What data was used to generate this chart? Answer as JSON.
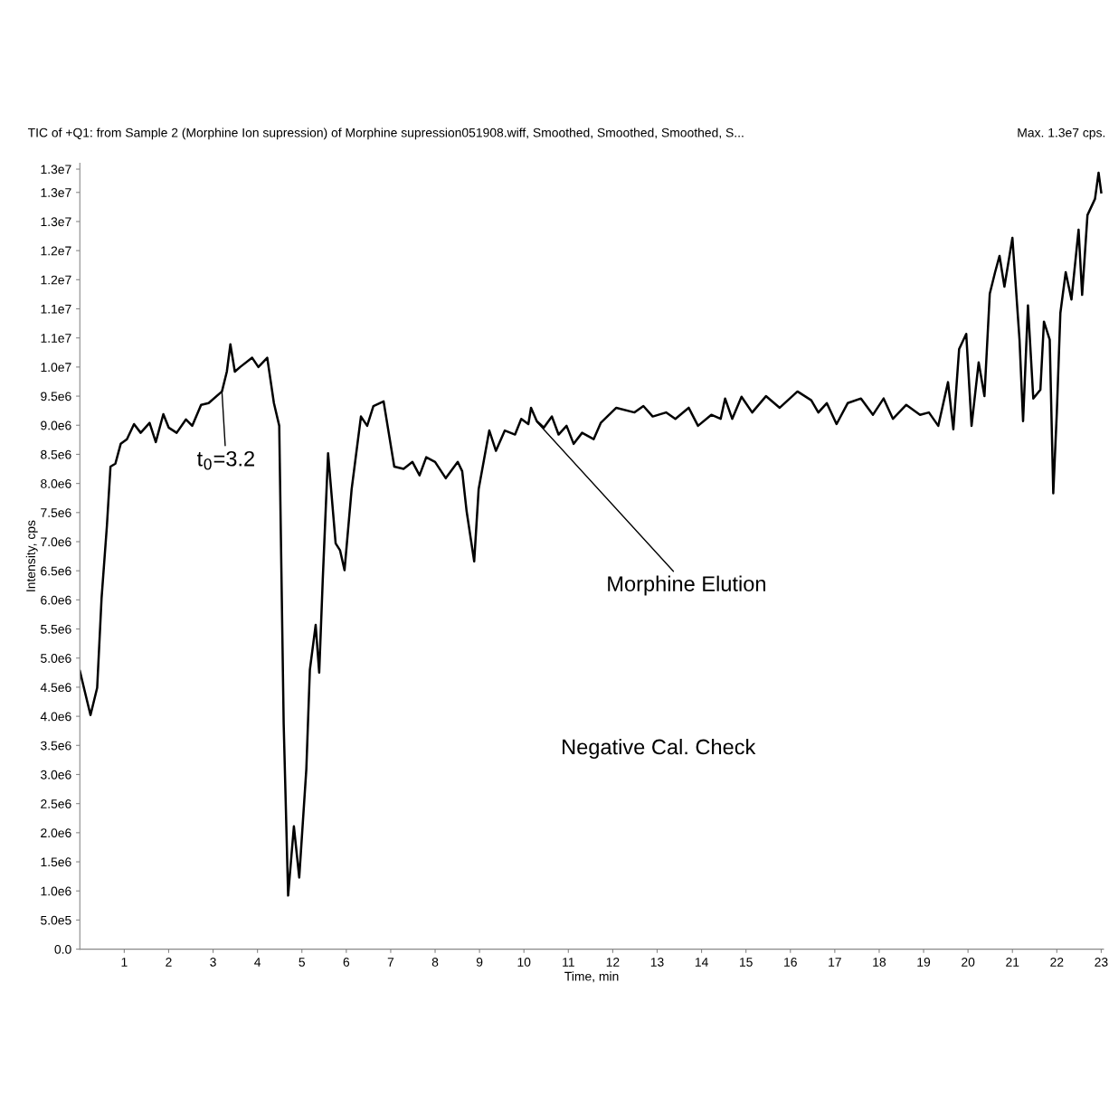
{
  "chart_data": {
    "type": "line",
    "title": "TIC of +Q1: from Sample 2 (Morphine Ion supression) of Morphine supression051908.wiff, Smoothed, Smoothed, Smoothed, S...",
    "subtitle": "Max. 1.3e7 cps.",
    "xlabel": "Time, min",
    "ylabel": "Intensity, cps",
    "x": [
      0,
      0.24,
      0.39,
      0.49,
      0.61,
      0.69,
      0.8,
      0.92,
      1.06,
      1.22,
      1.37,
      1.57,
      1.71,
      1.88,
      2.0,
      2.18,
      2.39,
      2.53,
      2.73,
      2.9,
      3.2,
      3.31,
      3.39,
      3.49,
      3.61,
      3.88,
      4.02,
      4.22,
      4.37,
      4.49,
      4.59,
      4.69,
      4.82,
      4.94,
      5.1,
      5.18,
      5.31,
      5.39,
      5.47,
      5.59,
      5.76,
      5.86,
      5.96,
      6.12,
      6.33,
      6.47,
      6.61,
      6.84,
      7.08,
      7.29,
      7.49,
      7.65,
      7.8,
      8.0,
      8.24,
      8.51,
      8.61,
      8.71,
      8.88,
      8.98,
      9.22,
      9.37,
      9.57,
      9.8,
      9.94,
      10.1,
      10.16,
      10.29,
      10.45,
      10.63,
      10.78,
      10.96,
      11.12,
      11.31,
      11.57,
      11.73,
      12.08,
      12.49,
      12.69,
      12.9,
      13.2,
      13.41,
      13.71,
      13.92,
      14.22,
      14.43,
      14.53,
      14.69,
      14.9,
      15.14,
      15.45,
      15.76,
      16.16,
      16.47,
      16.63,
      16.82,
      17.04,
      17.29,
      17.59,
      17.86,
      18.1,
      18.31,
      18.61,
      18.92,
      19.12,
      19.33,
      19.55,
      19.67,
      19.8,
      19.96,
      20.08,
      20.24,
      20.37,
      20.49,
      20.61,
      20.71,
      20.82,
      21.0,
      21.16,
      21.24,
      21.35,
      21.47,
      21.63,
      21.71,
      21.84,
      21.92,
      22.0,
      22.08,
      22.2,
      22.33,
      22.49,
      22.57,
      22.69,
      22.86,
      22.94,
      23.0
    ],
    "series": [
      {
        "color": "#000000",
        "values": [
          4780000,
          4020000,
          4490000,
          6040000,
          7280000,
          8290000,
          8340000,
          8680000,
          8760000,
          9020000,
          8870000,
          9040000,
          8710000,
          9190000,
          8960000,
          8870000,
          9100000,
          8990000,
          9350000,
          9380000,
          9580000,
          9920000,
          10390000,
          9920000,
          10000000,
          10160000,
          10000000,
          10160000,
          9380000,
          8990000,
          3870000,
          920000,
          2110000,
          1230000,
          3090000,
          4800000,
          5570000,
          4750000,
          6350000,
          8520000,
          6970000,
          6850000,
          6510000,
          7900000,
          9150000,
          8990000,
          9330000,
          9410000,
          8290000,
          8250000,
          8370000,
          8140000,
          8450000,
          8370000,
          8090000,
          8370000,
          8210000,
          7520000,
          6660000,
          7900000,
          8910000,
          8560000,
          8910000,
          8840000,
          9110000,
          9020000,
          9300000,
          9070000,
          8960000,
          9150000,
          8840000,
          8990000,
          8680000,
          8870000,
          8760000,
          9040000,
          9300000,
          9220000,
          9330000,
          9150000,
          9220000,
          9110000,
          9300000,
          8990000,
          9180000,
          9110000,
          9460000,
          9110000,
          9490000,
          9220000,
          9500000,
          9300000,
          9580000,
          9430000,
          9220000,
          9380000,
          9020000,
          9380000,
          9460000,
          9180000,
          9460000,
          9110000,
          9350000,
          9180000,
          9220000,
          8990000,
          9740000,
          8930000,
          10310000,
          10570000,
          8990000,
          10080000,
          9500000,
          11260000,
          11630000,
          11910000,
          11380000,
          12220000,
          10470000,
          9070000,
          11060000,
          9460000,
          9610000,
          10780000,
          10470000,
          7830000,
          9220000,
          10930000,
          11630000,
          11160000,
          12360000,
          11240000,
          12610000,
          12890000,
          13340000,
          13000000
        ]
      }
    ],
    "xlim": [
      0,
      23.05
    ],
    "xticks": [
      1,
      2,
      3,
      4,
      5,
      6,
      7,
      8,
      9,
      10,
      11,
      12,
      13,
      14,
      15,
      16,
      17,
      18,
      19,
      20,
      21,
      22,
      23
    ],
    "ylim": [
      0,
      13500000
    ],
    "yticks": [
      {
        "value": 0,
        "label": "0.0"
      },
      {
        "value": 500000,
        "label": "5.0e5"
      },
      {
        "value": 1000000,
        "label": "1.0e6"
      },
      {
        "value": 1500000,
        "label": "1.5e6"
      },
      {
        "value": 2000000,
        "label": "2.0e6"
      },
      {
        "value": 2500000,
        "label": "2.5e6"
      },
      {
        "value": 3000000,
        "label": "3.0e6"
      },
      {
        "value": 3500000,
        "label": "3.5e6"
      },
      {
        "value": 4000000,
        "label": "4.0e6"
      },
      {
        "value": 4500000,
        "label": "4.5e6"
      },
      {
        "value": 5000000,
        "label": "5.0e6"
      },
      {
        "value": 5500000,
        "label": "5.5e6"
      },
      {
        "value": 6000000,
        "label": "6.0e6"
      },
      {
        "value": 6500000,
        "label": "6.5e6"
      },
      {
        "value": 7000000,
        "label": "7.0e6"
      },
      {
        "value": 7500000,
        "label": "7.5e6"
      },
      {
        "value": 8000000,
        "label": "8.0e6"
      },
      {
        "value": 8500000,
        "label": "8.5e6"
      },
      {
        "value": 9000000,
        "label": "9.0e6"
      },
      {
        "value": 9500000,
        "label": "9.5e6"
      },
      {
        "value": 10000000,
        "label": "1.0e7"
      },
      {
        "value": 10500000,
        "label": "1.1e7"
      },
      {
        "value": 11000000,
        "label": "1.1e7"
      },
      {
        "value": 11500000,
        "label": "1.2e7"
      },
      {
        "value": 12000000,
        "label": "1.2e7"
      },
      {
        "value": 12500000,
        "label": "1.3e7"
      },
      {
        "value": 13000000,
        "label": "1.3e7"
      },
      {
        "value": 13400000,
        "label": "1.3e7"
      }
    ],
    "annotations": [
      {
        "text": "t$_{0}$=3.2",
        "x": 3.2,
        "y": 9580000
      },
      {
        "text": "Morphine Elution",
        "x": 10.3,
        "y": 9050000
      },
      "Negative Cal. Check"
    ],
    "grid": false,
    "marker": "none",
    "line_style": "solid"
  }
}
